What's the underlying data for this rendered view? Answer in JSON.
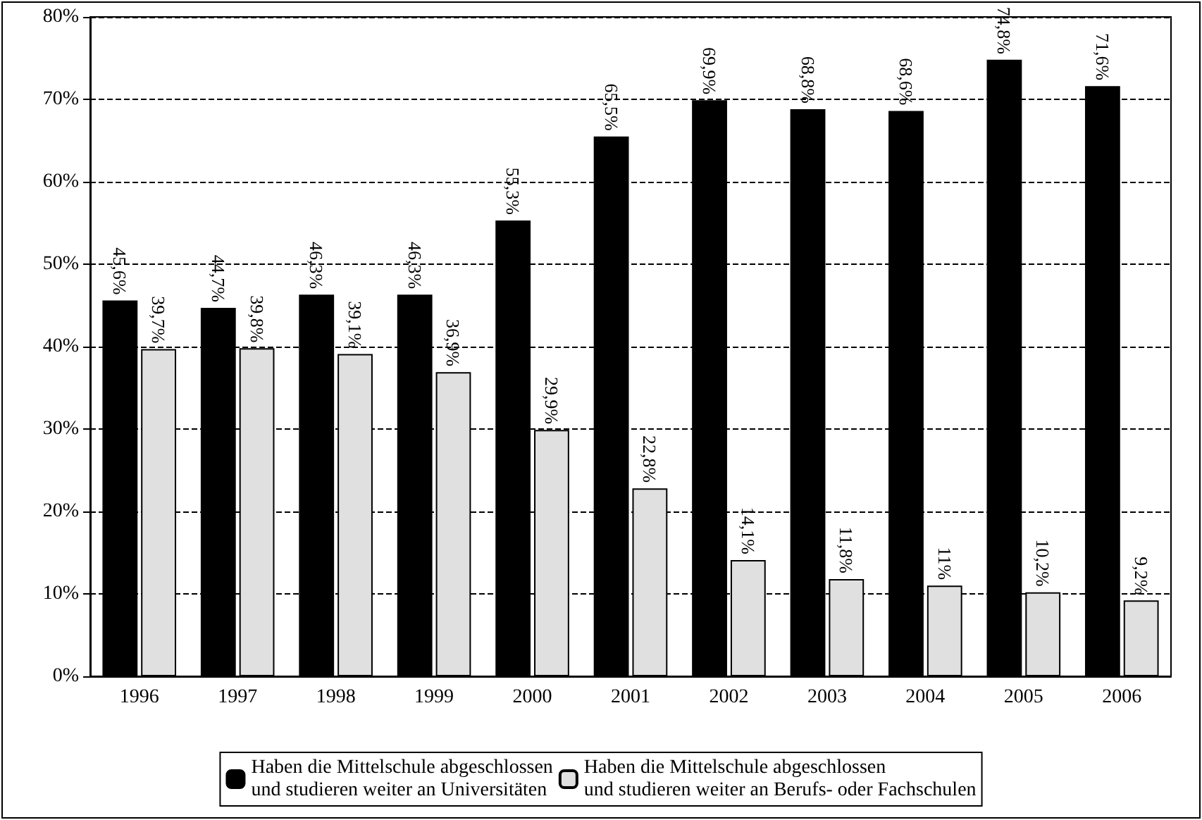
{
  "chart_data": {
    "type": "bar",
    "categories": [
      "1996",
      "1997",
      "1998",
      "1999",
      "2000",
      "2001",
      "2002",
      "2003",
      "2004",
      "2005",
      "2006"
    ],
    "series": [
      {
        "name": "Haben die Mittelschule abgeschlossen\nund studieren weiter an Universitäten",
        "color": "#000000",
        "values": [
          45.6,
          44.7,
          46.3,
          46.3,
          55.3,
          65.5,
          69.9,
          68.8,
          68.6,
          74.8,
          71.6
        ],
        "value_labels": [
          "45,6%",
          "44,7%",
          "46,3%",
          "46,3%",
          "55,3%",
          "65,5%",
          "69,9%",
          "68,8%",
          "68,6%",
          "74,8%",
          "71,6%"
        ]
      },
      {
        "name": "Haben die Mittelschule abgeschlossen\nund studieren weiter an Berufs- oder Fachschulen",
        "color": "#e0e0e0",
        "values": [
          39.7,
          39.8,
          39.1,
          36.9,
          29.9,
          22.8,
          14.1,
          11.8,
          11,
          10.2,
          9.2
        ],
        "value_labels": [
          "39,7%",
          "39,8%",
          "39,1%",
          "36,9%",
          "29,9%",
          "22,8%",
          "14,1%",
          "11,8%",
          "11%",
          "10,2%",
          "9,2%"
        ]
      }
    ],
    "ylim": [
      0,
      80
    ],
    "yticks": [
      {
        "value": 0,
        "label": "0%"
      },
      {
        "value": 10,
        "label": "10%"
      },
      {
        "value": 20,
        "label": "20%"
      },
      {
        "value": 30,
        "label": "30%"
      },
      {
        "value": 40,
        "label": "40%"
      },
      {
        "value": 50,
        "label": "50%"
      },
      {
        "value": 60,
        "label": "60%"
      },
      {
        "value": 70,
        "label": "70%"
      },
      {
        "value": 80,
        "label": "80%"
      }
    ],
    "grid": "y",
    "legend": "bottom"
  }
}
